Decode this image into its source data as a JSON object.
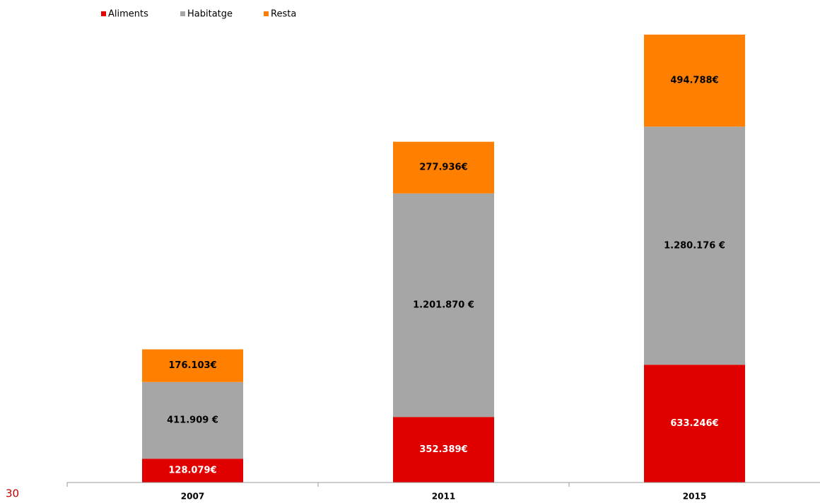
{
  "chart_data": {
    "type": "stacked_bar",
    "categories": [
      "2007",
      "2011",
      "2015"
    ],
    "series": [
      {
        "name": "Aliments",
        "color": "#e00000",
        "values": [
          128079,
          352389,
          633246
        ],
        "value_labels": [
          "128.079€",
          "352.389€",
          "633.246€"
        ]
      },
      {
        "name": "Habitatge",
        "color": "#a6a6a6",
        "values": [
          411909,
          1201870,
          1280176
        ],
        "value_labels": [
          "411.909 €",
          "1.201.870 €",
          "1.280.176 €"
        ]
      },
      {
        "name": "Resta",
        "color": "#ff8000",
        "values": [
          176103,
          277936,
          494788
        ],
        "value_labels": [
          "176.103€",
          "277.936€",
          "494.788€"
        ]
      }
    ],
    "legend": "top-left"
  },
  "footer": {
    "page_number": "30"
  }
}
